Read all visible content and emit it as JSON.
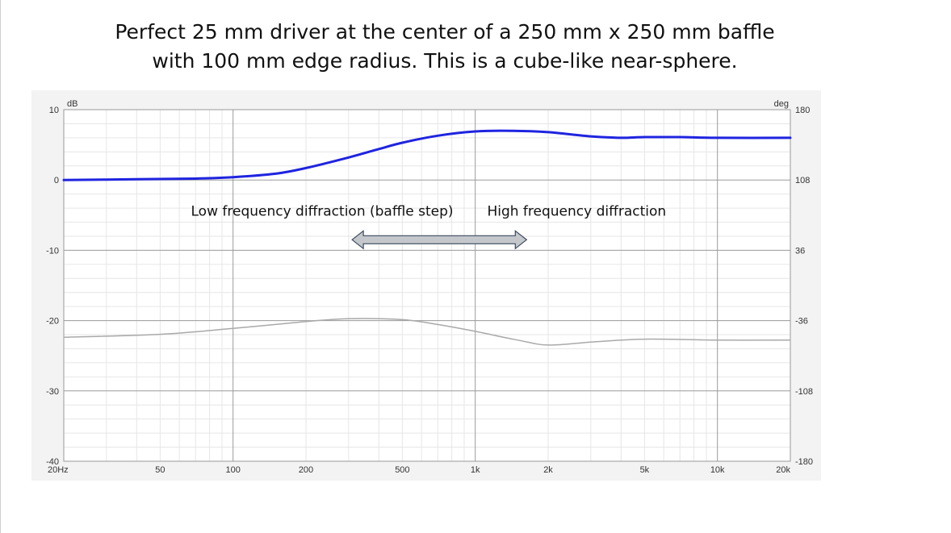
{
  "title_lines": [
    "Perfect 25 mm driver at the center of a 250 mm x 250 mm baffle",
    "with 100 mm edge radius.  This is a cube-like near-sphere."
  ],
  "chart_data": {
    "type": "line",
    "title": "",
    "xlabel": "",
    "ylabel": "dB",
    "y2label": "deg",
    "xscale": "log",
    "xlim": [
      20,
      20000
    ],
    "ylim": [
      -40,
      10
    ],
    "y2lim": [
      -180,
      180
    ],
    "grid": true,
    "x_tick_labels": [
      "20Hz",
      "50",
      "100",
      "200",
      "500",
      "1k",
      "2k",
      "5k",
      "10k",
      "20k"
    ],
    "x_tick_values": [
      20,
      50,
      100,
      200,
      500,
      1000,
      2000,
      5000,
      10000,
      20000
    ],
    "y_tick_labels": [
      "10",
      "0",
      "-10",
      "-20",
      "-30",
      "-40"
    ],
    "y_tick_values": [
      10,
      0,
      -10,
      -20,
      -30,
      -40
    ],
    "y2_tick_labels": [
      "180",
      "108",
      "36",
      "-36",
      "-108",
      "-180"
    ],
    "y2_tick_values": [
      180,
      108,
      36,
      -36,
      -108,
      -180
    ],
    "series": [
      {
        "axis": "left",
        "color": "#1f24e0",
        "x": [
          20,
          40,
          70,
          100,
          150,
          200,
          300,
          400,
          500,
          700,
          1000,
          1400,
          2000,
          3000,
          4000,
          5000,
          7000,
          10000,
          20000
        ],
        "y": [
          0.0,
          0.1,
          0.2,
          0.4,
          0.9,
          1.7,
          3.2,
          4.4,
          5.3,
          6.3,
          6.9,
          7.0,
          6.8,
          6.2,
          6.0,
          6.1,
          6.1,
          6.0,
          6.0
        ]
      },
      {
        "axis": "right",
        "color": "#a9a9a9",
        "x": [
          20,
          50,
          100,
          200,
          300,
          500,
          700,
          1000,
          1500,
          2000,
          3000,
          5000,
          10000,
          20000
        ],
        "y": [
          -53,
          -50,
          -44,
          -37,
          -34,
          -35,
          -40,
          -47,
          -56,
          -61,
          -58,
          -55,
          -56,
          -56
        ]
      }
    ],
    "annotations": [
      {
        "text": "Low frequency diffraction (baffle step)"
      },
      {
        "text": "High frequency diffraction"
      },
      {
        "type": "double-arrow",
        "from_x": 310,
        "to_x": 1630,
        "y": -8.5,
        "color": "#c4c7cc"
      }
    ]
  }
}
